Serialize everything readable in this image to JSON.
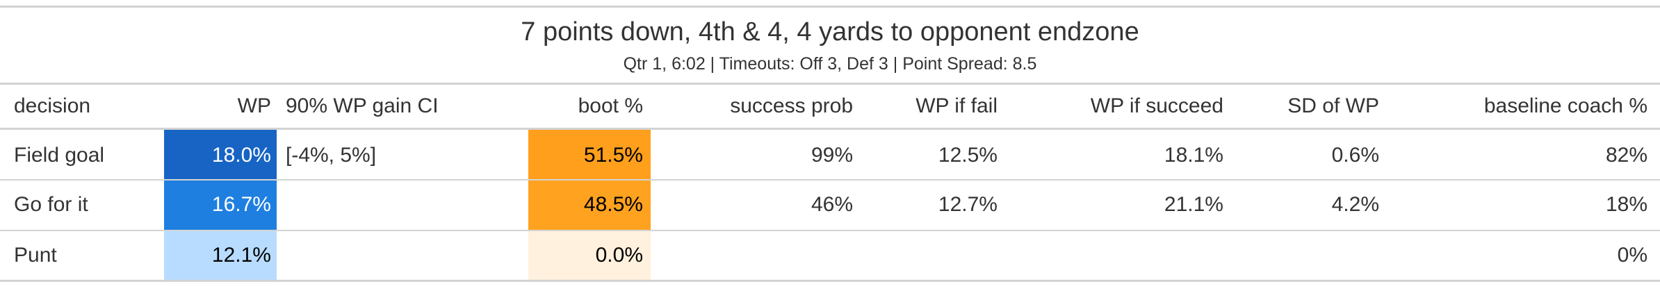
{
  "title": "7 points down, 4th & 4, 4 yards to opponent endzone",
  "subtitle": "Qtr 1, 6:02 | Timeouts: Off 3, Def 3 | Point Spread: 8.5",
  "columns": {
    "decision": "decision",
    "wp": "WP",
    "ci": "90% WP gain CI",
    "boot": "boot %",
    "success_prob": "success prob",
    "wp_fail": "WP if fail",
    "wp_succeed": "WP if succeed",
    "sd_wp": "SD of WP",
    "baseline": "baseline coach %"
  },
  "rows": [
    {
      "decision": "Field goal",
      "wp": "18.0%",
      "ci": "[-4%, 5%]",
      "boot": "51.5%",
      "success_prob": "99%",
      "wp_fail": "12.5%",
      "wp_succeed": "18.1%",
      "sd_wp": "0.6%",
      "baseline": "82%",
      "wp_color": "#1764c4",
      "boot_color": "#ff9f1c"
    },
    {
      "decision": "Go for it",
      "wp": "16.7%",
      "ci": "",
      "boot": "48.5%",
      "success_prob": "46%",
      "wp_fail": "12.7%",
      "wp_succeed": "21.1%",
      "sd_wp": "4.2%",
      "baseline": "18%",
      "wp_color": "#1f7fe0",
      "boot_color": "#ffa21f"
    },
    {
      "decision": "Punt",
      "wp": "12.1%",
      "ci": "",
      "boot": "0.0%",
      "success_prob": "",
      "wp_fail": "",
      "wp_succeed": "",
      "sd_wp": "",
      "baseline": "0%",
      "wp_color": "#b8dcff",
      "boot_color": "#fff1de"
    }
  ]
}
